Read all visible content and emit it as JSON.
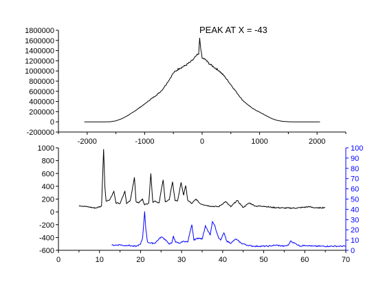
{
  "chart_data": [
    {
      "type": "line",
      "annotation": "PEAK AT X = -43",
      "xlim": [
        -2500,
        2500
      ],
      "ylim": [
        -200000,
        1800000
      ],
      "x_ticks": [
        -2000,
        -1000,
        0,
        1000,
        2000
      ],
      "y_ticks": [
        -200000,
        0,
        200000,
        400000,
        600000,
        800000,
        1000000,
        1200000,
        1400000,
        1600000,
        1800000
      ],
      "x_tick_labels": [
        "-2000",
        "-1000",
        "0",
        "1000",
        "2000"
      ],
      "y_tick_labels": [
        "-200000",
        "0",
        "200000",
        "400000",
        "600000",
        "800000",
        "1000000",
        "1200000",
        "1400000",
        "1600000",
        "1800000"
      ],
      "grid": false,
      "series": [
        {
          "color": "#000000",
          "x": [
            -2050,
            -1700,
            -1600,
            -1500,
            -1400,
            -1300,
            -1200,
            -1100,
            -1000,
            -900,
            -800,
            -700,
            -600,
            -500,
            -400,
            -300,
            -200,
            -150,
            -100,
            -60,
            -43,
            -20,
            0,
            50,
            100,
            150,
            200,
            300,
            400,
            500,
            600,
            700,
            800,
            900,
            1000,
            1100,
            1200,
            1300,
            1400,
            1500,
            1600,
            2050
          ],
          "y": [
            0,
            0,
            2000,
            20000,
            60000,
            120000,
            190000,
            270000,
            350000,
            440000,
            520000,
            620000,
            780000,
            960000,
            1050000,
            1100000,
            1180000,
            1230000,
            1300000,
            1330000,
            1650000,
            1400000,
            1250000,
            1230000,
            1170000,
            1120000,
            1080000,
            1000000,
            880000,
            730000,
            580000,
            430000,
            330000,
            250000,
            190000,
            130000,
            70000,
            30000,
            10000,
            2000,
            0,
            0
          ]
        }
      ]
    },
    {
      "type": "line",
      "xlim": [
        0,
        70
      ],
      "ylim": [
        -600,
        1000
      ],
      "y2lim": [
        0,
        100
      ],
      "x_ticks": [
        0,
        10,
        20,
        30,
        40,
        50,
        60,
        70
      ],
      "y_ticks": [
        -600,
        -400,
        -200,
        0,
        200,
        400,
        600,
        800,
        1000
      ],
      "y2_ticks": [
        0,
        10,
        20,
        30,
        40,
        50,
        60,
        70,
        80,
        90,
        100
      ],
      "x_tick_labels": [
        "0",
        "10",
        "20",
        "30",
        "40",
        "50",
        "60",
        "70"
      ],
      "y_tick_labels": [
        "-600",
        "-400",
        "-200",
        "0",
        "200",
        "400",
        "600",
        "800",
        "1000"
      ],
      "y2_tick_labels": [
        "0",
        "10",
        "20",
        "30",
        "40",
        "50",
        "60",
        "70",
        "80",
        "90",
        "100"
      ],
      "grid": false,
      "series": [
        {
          "color": "#000000",
          "axis": "left",
          "x": [
            5,
            7,
            9,
            10.5,
            11,
            11.3,
            11.6,
            12.5,
            13.5,
            14,
            15,
            16.2,
            16.6,
            17.5,
            18.5,
            18.9,
            19.5,
            20.5,
            21,
            22,
            22.5,
            23,
            23.5,
            24.5,
            25.5,
            26,
            27,
            27.8,
            28.4,
            29,
            29.9,
            30.5,
            31,
            31.5,
            32.5,
            33.5,
            34.5,
            35.5,
            37,
            39,
            40.7,
            42,
            43.5,
            45,
            46.5,
            48,
            50,
            52,
            55,
            58,
            61,
            63,
            65
          ],
          "y": [
            100,
            80,
            60,
            90,
            980,
            400,
            170,
            190,
            320,
            140,
            130,
            320,
            130,
            180,
            540,
            160,
            140,
            200,
            110,
            140,
            600,
            150,
            170,
            140,
            500,
            160,
            190,
            470,
            180,
            170,
            460,
            260,
            410,
            180,
            130,
            200,
            130,
            110,
            90,
            80,
            160,
            80,
            180,
            70,
            140,
            90,
            90,
            70,
            60,
            60,
            80,
            60,
            70
          ]
        },
        {
          "color": "#0000ff",
          "axis": "right",
          "x": [
            13,
            14,
            15,
            16,
            17,
            18,
            19,
            20,
            20.5,
            21,
            21.3,
            21.7,
            22.5,
            23.5,
            24.5,
            25,
            25.5,
            26.2,
            27,
            27.6,
            28,
            28.5,
            29.5,
            30.5,
            31.5,
            32.5,
            33,
            34,
            35,
            35.8,
            36.3,
            37,
            37.5,
            38,
            38.5,
            39,
            39.5,
            40.3,
            41,
            42,
            43.2,
            44.5,
            46,
            47.5,
            49,
            51,
            53,
            55,
            56,
            56.5,
            57.5,
            59,
            60,
            62,
            64,
            66,
            68,
            70
          ],
          "y": [
            5,
            5,
            5.5,
            4.5,
            5,
            4,
            4,
            6,
            12,
            38,
            20,
            8,
            7,
            7,
            11,
            13,
            12,
            10,
            6,
            7,
            14,
            8,
            7,
            9,
            8,
            25,
            10,
            12,
            11,
            24,
            20,
            15,
            28,
            25,
            18,
            12,
            10,
            17,
            9,
            7,
            11,
            7,
            5,
            4,
            4,
            4,
            5,
            4,
            5,
            9,
            7,
            4,
            5,
            4,
            4,
            4,
            4,
            4
          ]
        }
      ]
    }
  ]
}
